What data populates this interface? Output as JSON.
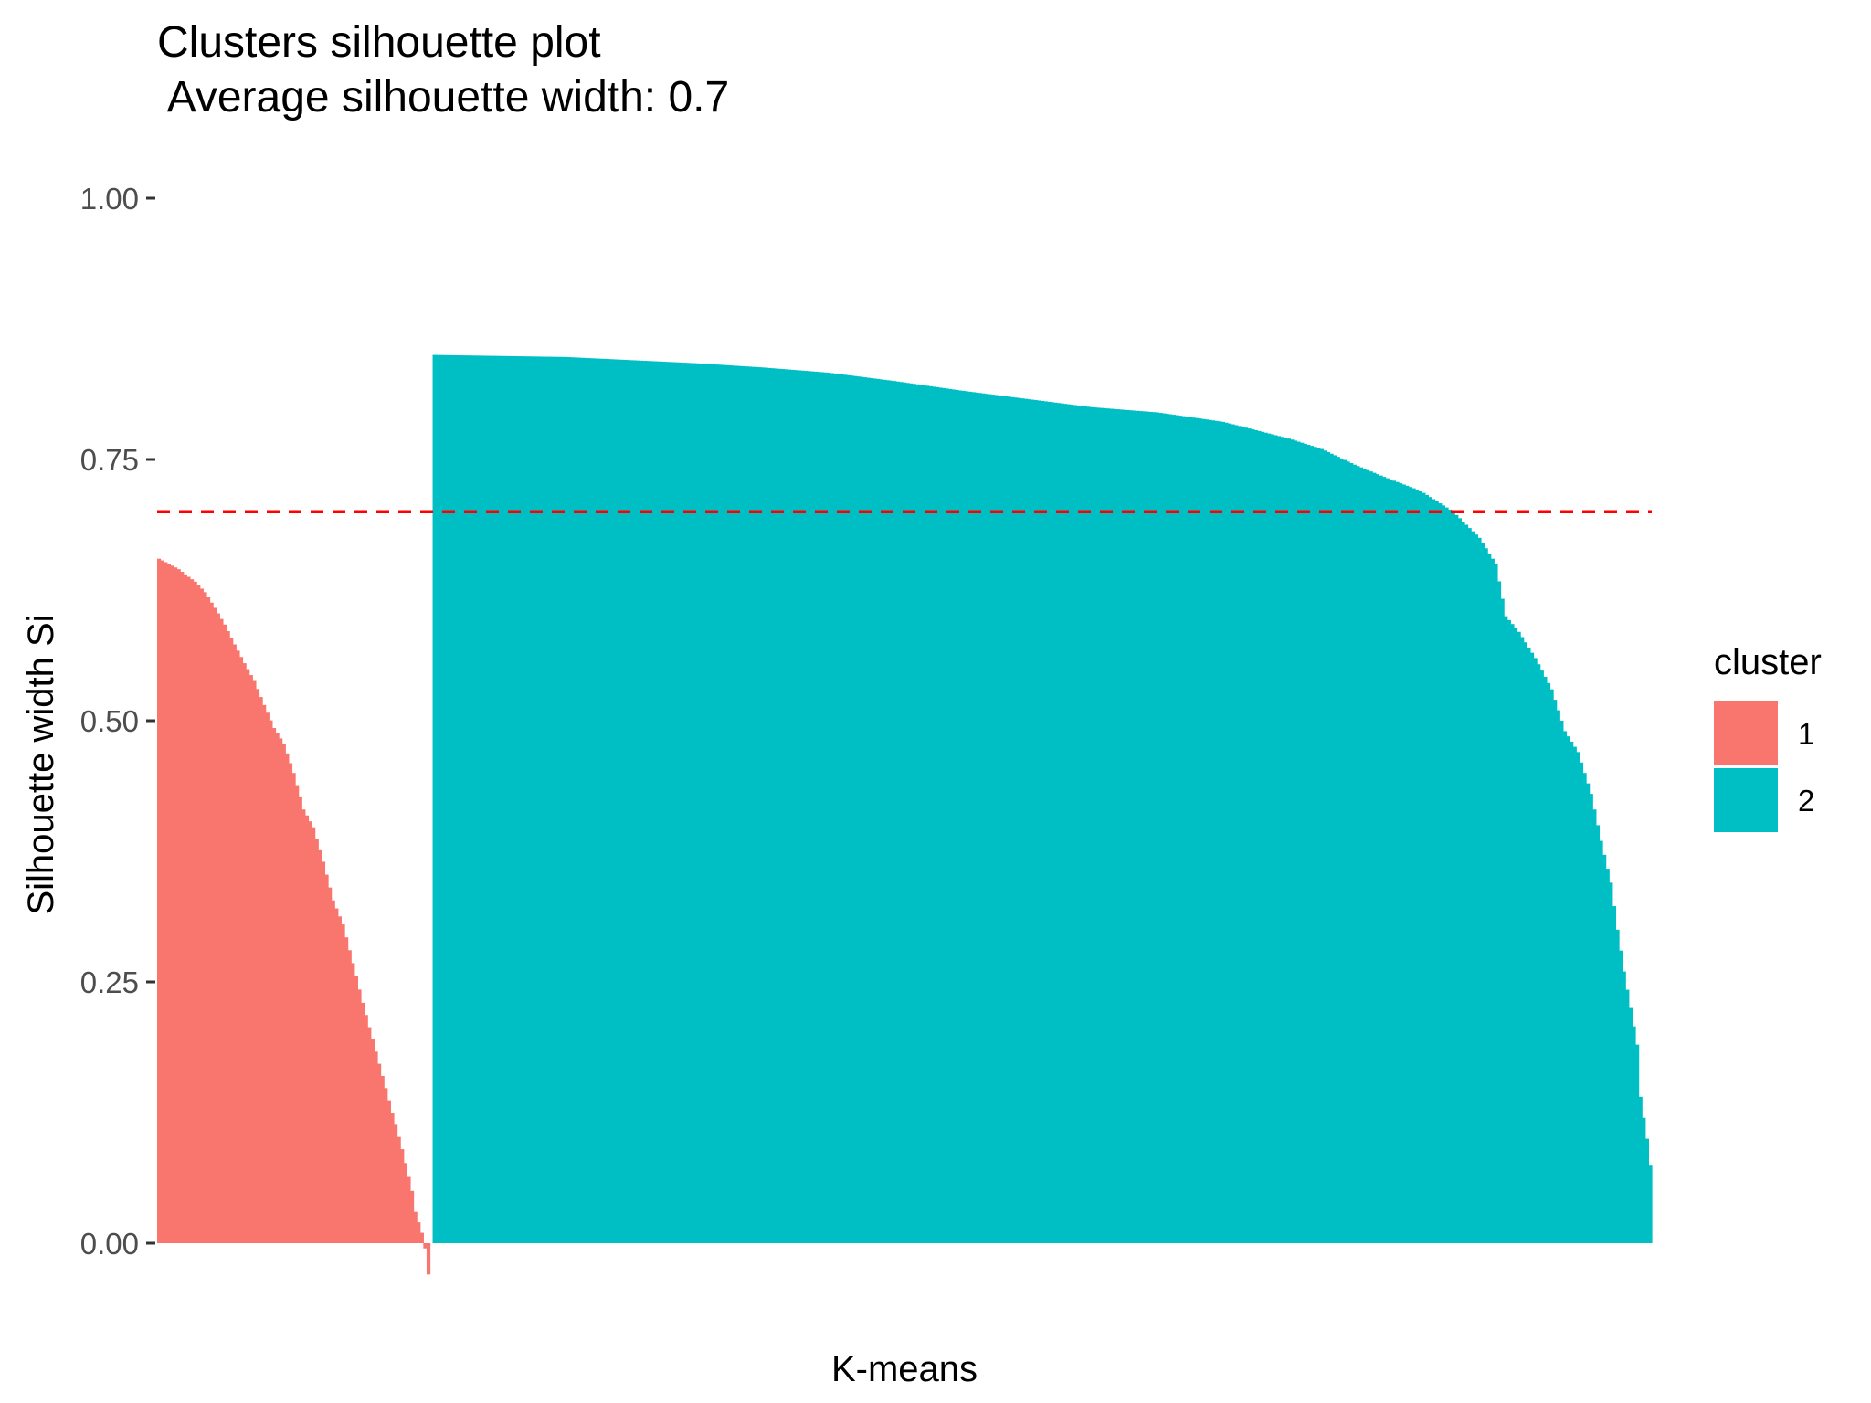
{
  "chart_data": {
    "type": "bar",
    "title": "Clusters silhouette plot",
    "subtitle": " Average silhouette width: 0.7",
    "xlabel": "K-means",
    "ylabel": "Silhouette width Si",
    "ylim": [
      -0.04,
      1.0
    ],
    "yticks": [
      0.0,
      0.25,
      0.5,
      0.75,
      1.0
    ],
    "ytick_labels": [
      "0.00",
      "0.25",
      "0.50",
      "0.75",
      "1.00"
    ],
    "average_line": {
      "value": 0.7,
      "color": "#ff0000",
      "style": "dashed"
    },
    "grid": false,
    "legend": {
      "title": "cluster",
      "placement": "right",
      "entries": [
        {
          "label": "1",
          "color": "#f8766d"
        },
        {
          "label": "2",
          "color": "#00bfc4"
        }
      ]
    },
    "series": [
      {
        "cluster": "1",
        "color": "#f8766d",
        "profile": [
          [
            0,
            0.655
          ],
          [
            3,
            0.65
          ],
          [
            6,
            0.645
          ],
          [
            8,
            0.64
          ],
          [
            11,
            0.633
          ],
          [
            14,
            0.623
          ],
          [
            17,
            0.608
          ],
          [
            20,
            0.592
          ],
          [
            23,
            0.573
          ],
          [
            26,
            0.555
          ],
          [
            29,
            0.538
          ],
          [
            32,
            0.515
          ],
          [
            35,
            0.493
          ],
          [
            38,
            0.478
          ],
          [
            41,
            0.45
          ],
          [
            44,
            0.415
          ],
          [
            47,
            0.398
          ],
          [
            50,
            0.365
          ],
          [
            53,
            0.328
          ],
          [
            56,
            0.305
          ],
          [
            59,
            0.268
          ],
          [
            62,
            0.23
          ],
          [
            65,
            0.195
          ],
          [
            68,
            0.16
          ],
          [
            71,
            0.125
          ],
          [
            74,
            0.09
          ],
          [
            77,
            0.05
          ],
          [
            78,
            0.03
          ],
          [
            80,
            0.01
          ],
          [
            81,
            -0.005
          ],
          [
            82,
            -0.03
          ]
        ]
      },
      {
        "cluster": "2",
        "color": "#00bfc4",
        "profile": [
          [
            0,
            0.85
          ],
          [
            20,
            0.849
          ],
          [
            40,
            0.848
          ],
          [
            60,
            0.845
          ],
          [
            80,
            0.842
          ],
          [
            100,
            0.838
          ],
          [
            120,
            0.833
          ],
          [
            140,
            0.825
          ],
          [
            160,
            0.816
          ],
          [
            180,
            0.808
          ],
          [
            200,
            0.8
          ],
          [
            220,
            0.795
          ],
          [
            240,
            0.786
          ],
          [
            250,
            0.778
          ],
          [
            260,
            0.77
          ],
          [
            270,
            0.76
          ],
          [
            280,
            0.745
          ],
          [
            290,
            0.732
          ],
          [
            300,
            0.72
          ],
          [
            310,
            0.7
          ],
          [
            318,
            0.675
          ],
          [
            323,
            0.65
          ],
          [
            326,
            0.6
          ],
          [
            330,
            0.585
          ],
          [
            335,
            0.56
          ],
          [
            340,
            0.53
          ],
          [
            344,
            0.49
          ],
          [
            348,
            0.47
          ],
          [
            352,
            0.43
          ],
          [
            355,
            0.385
          ],
          [
            358,
            0.345
          ],
          [
            360,
            0.3
          ],
          [
            362,
            0.26
          ],
          [
            364,
            0.225
          ],
          [
            366,
            0.19
          ],
          [
            367,
            0.14
          ],
          [
            369,
            0.1
          ],
          [
            370,
            0.075
          ]
        ]
      }
    ]
  }
}
